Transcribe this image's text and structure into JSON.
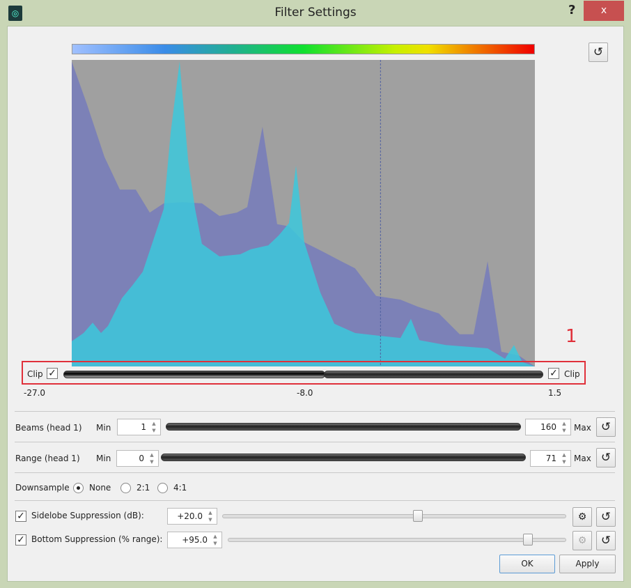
{
  "window": {
    "title": "Filter Settings",
    "help": "?",
    "close": "x",
    "app_icon": "sonar-icon"
  },
  "colors": {
    "accent_red": "#e0303a",
    "histogram_bg": "#a0a0a0",
    "series_a": "#7a7fb8",
    "series_b": "#3cc8dc"
  },
  "histogram": {
    "x_range": [
      -27.0,
      1.5
    ],
    "marker": -8.0,
    "series_a": [
      [
        -27.0,
        0.995
      ],
      [
        -26.06,
        0.855
      ],
      [
        -24.99,
        0.684
      ],
      [
        -24.04,
        0.577
      ],
      [
        -23.06,
        0.577
      ],
      [
        -22.2,
        0.502
      ],
      [
        -21.34,
        0.532
      ],
      [
        -20.19,
        0.536
      ],
      [
        -18.99,
        0.532
      ],
      [
        -17.91,
        0.491
      ],
      [
        -16.84,
        0.502
      ],
      [
        -16.2,
        0.52
      ],
      [
        -15.26,
        0.782
      ],
      [
        -14.36,
        0.464
      ],
      [
        -13.63,
        0.457
      ],
      [
        -12.69,
        0.405
      ],
      [
        -11.49,
        0.373
      ],
      [
        -10.41,
        0.343
      ],
      [
        -9.56,
        0.32
      ],
      [
        -8.27,
        0.23
      ],
      [
        -6.77,
        0.218
      ],
      [
        -5.7,
        0.195
      ],
      [
        -4.41,
        0.173
      ],
      [
        -3.13,
        0.105
      ],
      [
        -2.27,
        0.105
      ],
      [
        -1.41,
        0.343
      ],
      [
        -0.56,
        0.048
      ],
      [
        0.51,
        0.036
      ],
      [
        1.5,
        0
      ]
    ],
    "series_b": [
      [
        -27.0,
        0.082
      ],
      [
        -26.27,
        0.109
      ],
      [
        -25.71,
        0.143
      ],
      [
        -25.2,
        0.109
      ],
      [
        -24.77,
        0.132
      ],
      [
        -23.91,
        0.223
      ],
      [
        -23.27,
        0.264
      ],
      [
        -22.63,
        0.309
      ],
      [
        -21.99,
        0.411
      ],
      [
        -21.34,
        0.514
      ],
      [
        -20.91,
        0.764
      ],
      [
        -20.36,
        0.995
      ],
      [
        -19.84,
        0.673
      ],
      [
        -19.41,
        0.514
      ],
      [
        -18.99,
        0.4
      ],
      [
        -17.91,
        0.359
      ],
      [
        -16.63,
        0.366
      ],
      [
        -15.99,
        0.382
      ],
      [
        -14.91,
        0.395
      ],
      [
        -14.27,
        0.427
      ],
      [
        -13.63,
        0.468
      ],
      [
        -13.2,
        0.655
      ],
      [
        -12.69,
        0.405
      ],
      [
        -11.7,
        0.241
      ],
      [
        -10.84,
        0.139
      ],
      [
        -9.56,
        0.109
      ],
      [
        -8.06,
        0.1
      ],
      [
        -6.77,
        0.093
      ],
      [
        -6.13,
        0.155
      ],
      [
        -5.61,
        0.086
      ],
      [
        -3.99,
        0.07
      ],
      [
        -1.41,
        0.059
      ],
      [
        -0.34,
        0.025
      ],
      [
        0.21,
        0.07
      ],
      [
        0.73,
        0.014
      ],
      [
        1.5,
        0
      ]
    ]
  },
  "clip": {
    "left_label": "Clip",
    "right_label": "Clip",
    "left_checked": true,
    "right_checked": true,
    "min_label": "-27.0",
    "mid_label": "-8.0",
    "max_label": "1.5",
    "annotation": "1"
  },
  "beams": {
    "label": "Beams (head 1)",
    "min_label": "Min",
    "min": "1",
    "max": "160",
    "max_label": "Max"
  },
  "range": {
    "label": "Range (head 1)",
    "min_label": "Min",
    "min": "0",
    "max": "71",
    "max_label": "Max"
  },
  "downsample": {
    "label": "Downsample",
    "options": [
      "None",
      "2:1",
      "4:1"
    ],
    "selected": "None"
  },
  "sidelobe": {
    "label": "Sidelobe Suppression (dB):",
    "value": "+20.0",
    "checked": true,
    "slider": 0.57
  },
  "bottom": {
    "label": "Bottom Suppression (% range):",
    "value": "+95.0",
    "checked": true,
    "slider": 0.95
  },
  "buttons": {
    "ok": "OK",
    "apply": "Apply"
  }
}
